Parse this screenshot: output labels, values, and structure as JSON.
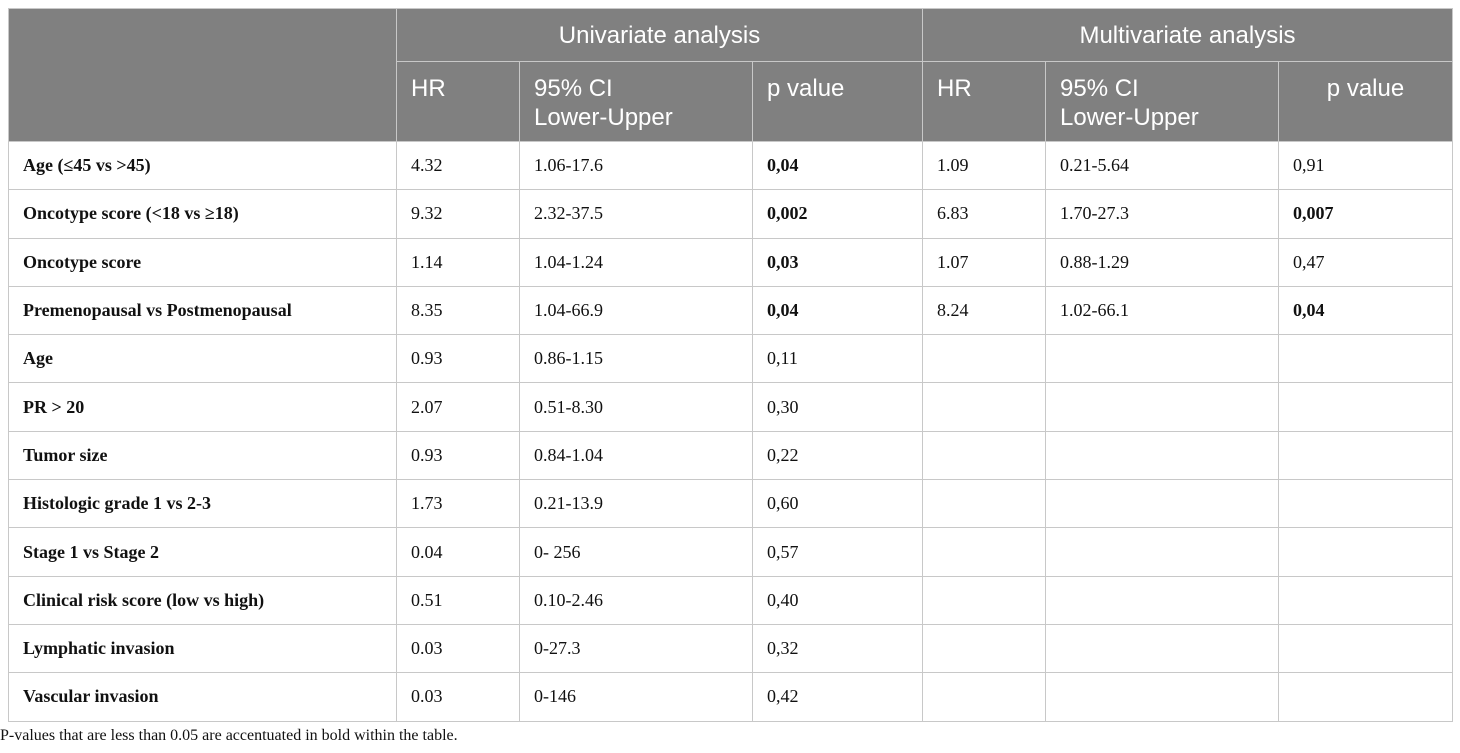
{
  "table": {
    "group_headers": [
      "Univariate analysis",
      "Multivariate analysis"
    ],
    "sub_headers": [
      "HR",
      "95% CI\nLower-Upper",
      "p value",
      "HR",
      "95% CI\nLower-Upper",
      "p value"
    ],
    "rows": [
      [
        "Age (≤45 vs >45)",
        "4.32",
        "1.06-17.6",
        {
          "text": "0,04",
          "bold": true
        },
        "1.09",
        "0.21-5.64",
        "0,91"
      ],
      [
        "Oncotype score (<18 vs ≥18)",
        "9.32",
        "2.32-37.5",
        {
          "text": "0,002",
          "bold": true
        },
        "6.83",
        "1.70-27.3",
        {
          "text": "0,007",
          "bold": true
        }
      ],
      [
        "Oncotype score",
        "1.14",
        "1.04-1.24",
        {
          "text": "0,03",
          "bold": true
        },
        "1.07",
        "0.88-1.29",
        "0,47"
      ],
      [
        "Premenopausal vs Postmenopausal",
        "8.35",
        "1.04-66.9",
        {
          "text": "0,04",
          "bold": true
        },
        "8.24",
        "1.02-66.1",
        {
          "text": "0,04",
          "bold": true
        }
      ],
      [
        "Age",
        "0.93",
        "0.86-1.15",
        "0,11"
      ],
      [
        "PR > 20",
        "2.07",
        "0.51-8.30",
        "0,30"
      ],
      [
        "Tumor size",
        "0.93",
        "0.84-1.04",
        "0,22"
      ],
      [
        "Histologic grade 1 vs 2-3",
        "1.73",
        "0.21-13.9",
        "0,60"
      ],
      [
        "Stage 1 vs Stage 2",
        "0.04",
        "0- 256",
        "0,57"
      ],
      [
        "Clinical risk score (low vs high)",
        "0.51",
        "0.10-2.46",
        "0,40"
      ],
      [
        "Lymphatic invasion",
        "0.03",
        "0-27.3",
        "0,32"
      ],
      [
        "Vascular invasion",
        "0.03",
        "0-146",
        "0,42"
      ]
    ]
  },
  "footnote": "P-values that are less than 0.05 are accentuated in bold within the table."
}
